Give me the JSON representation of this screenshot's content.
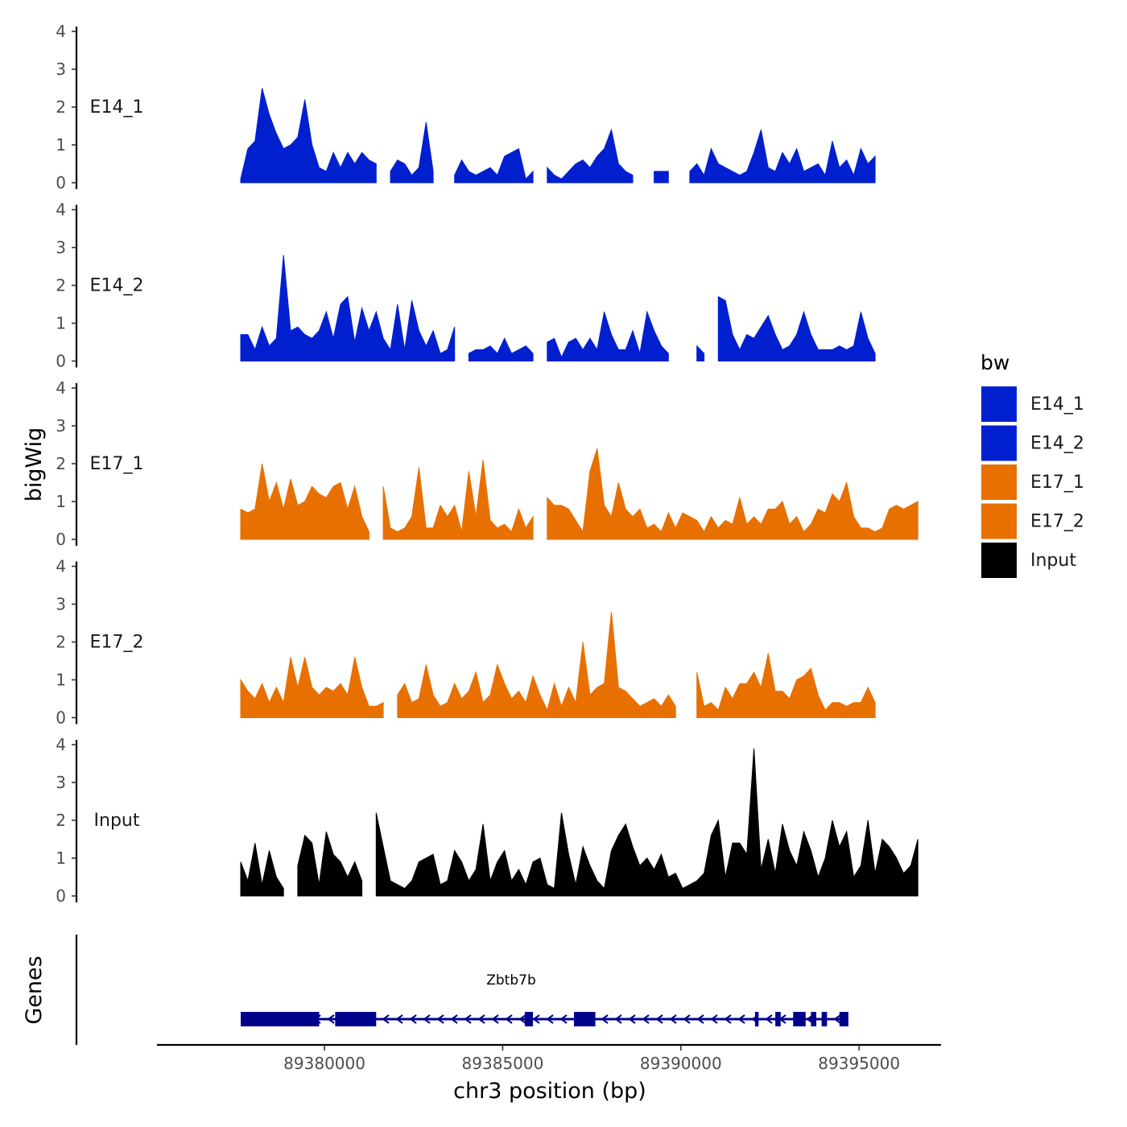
{
  "chart_data": {
    "type": "area",
    "title": "",
    "ylabel": "bigWig",
    "xlabel": "chr3 position (bp)",
    "genes_label": "Genes",
    "xlim": [
      89375300,
      89397300
    ],
    "ylim": [
      0,
      4
    ],
    "yticks": [
      "0",
      "1",
      "2",
      "3",
      "4"
    ],
    "xticks": [
      {
        "value": 89380000,
        "label": "89380000"
      },
      {
        "value": 89385000,
        "label": "89385000"
      },
      {
        "value": 89390000,
        "label": "89390000"
      },
      {
        "value": 89395000,
        "label": "89395000"
      }
    ],
    "legend": {
      "title": "bw",
      "position": "right",
      "entries": [
        {
          "label": "E14_1",
          "color": "#0020D0"
        },
        {
          "label": "E14_2",
          "color": "#0020D0"
        },
        {
          "label": "E17_1",
          "color": "#E87000"
        },
        {
          "label": "E17_2",
          "color": "#E87000"
        },
        {
          "label": "Input",
          "color": "#000000"
        }
      ]
    },
    "x": [
      89377650,
      89377850,
      89378050,
      89378250,
      89378450,
      89378650,
      89378850,
      89379050,
      89379250,
      89379450,
      89379650,
      89379850,
      89380050,
      89380250,
      89380450,
      89380650,
      89380850,
      89381050,
      89381250,
      89381450,
      89381650,
      89381850,
      89382050,
      89382250,
      89382450,
      89382650,
      89382850,
      89383050,
      89383250,
      89383450,
      89383650,
      89383850,
      89384050,
      89384250,
      89384450,
      89384650,
      89384850,
      89385050,
      89385250,
      89385450,
      89385650,
      89385850,
      89386050,
      89386250,
      89386450,
      89386650,
      89386850,
      89387050,
      89387250,
      89387450,
      89387650,
      89387850,
      89388050,
      89388250,
      89388450,
      89388650,
      89388850,
      89389050,
      89389250,
      89389450,
      89389650,
      89389850,
      89390050,
      89390250,
      89390450,
      89390650,
      89390850,
      89391050,
      89391250,
      89391450,
      89391650,
      89391850,
      89392050,
      89392250,
      89392450,
      89392650,
      89392850,
      89393050,
      89393250,
      89393450,
      89393650,
      89393850,
      89394050,
      89394250,
      89394450,
      89394650,
      89394850,
      89395050,
      89395250,
      89395450,
      89395650,
      89395850,
      89396050,
      89396250,
      89396450,
      89396650
    ],
    "series": [
      {
        "name": "E14_1",
        "color": "#0020D0",
        "values": [
          0.1,
          0.9,
          1.1,
          2.5,
          1.8,
          1.3,
          0.9,
          1.0,
          1.2,
          2.2,
          1.0,
          0.4,
          0.3,
          0.8,
          0.4,
          0.8,
          0.5,
          0.8,
          0.6,
          0.5,
          null,
          0.3,
          0.6,
          0.5,
          0.2,
          0.4,
          1.6,
          0.3,
          null,
          null,
          0.2,
          0.6,
          0.3,
          0.2,
          0.3,
          0.4,
          0.2,
          0.7,
          0.8,
          0.9,
          0.1,
          0.3,
          null,
          0.4,
          0.2,
          0.1,
          0.3,
          0.5,
          0.6,
          0.4,
          0.7,
          0.9,
          1.4,
          0.5,
          0.3,
          0.2,
          null,
          null,
          0.3,
          0.3,
          0.3,
          null,
          null,
          0.3,
          0.5,
          0.2,
          0.9,
          0.5,
          0.4,
          0.3,
          0.2,
          0.3,
          0.8,
          1.4,
          0.4,
          0.3,
          0.8,
          0.5,
          0.9,
          0.3,
          0.4,
          0.5,
          0.2,
          1.1,
          0.4,
          0.6,
          0.2,
          0.9,
          0.5,
          0.7,
          null,
          null,
          null,
          null,
          null,
          null
        ]
      },
      {
        "name": "E14_2",
        "color": "#0020D0",
        "values": [
          0.7,
          0.7,
          0.3,
          0.9,
          0.4,
          0.6,
          2.8,
          0.8,
          0.9,
          0.7,
          0.6,
          0.8,
          1.3,
          0.6,
          1.5,
          1.7,
          0.5,
          1.4,
          0.8,
          1.3,
          0.6,
          0.3,
          1.5,
          0.3,
          1.6,
          0.8,
          0.4,
          0.8,
          0.2,
          0.3,
          0.9,
          null,
          0.2,
          0.3,
          0.3,
          0.4,
          0.2,
          0.6,
          0.2,
          0.3,
          0.4,
          0.2,
          null,
          0.5,
          0.6,
          0.1,
          0.5,
          0.6,
          0.3,
          0.6,
          0.3,
          1.3,
          0.7,
          0.3,
          0.3,
          0.8,
          0.2,
          1.3,
          0.8,
          0.4,
          0.2,
          null,
          null,
          null,
          0.4,
          0.2,
          null,
          1.7,
          1.6,
          0.7,
          0.3,
          0.7,
          0.6,
          0.9,
          1.2,
          0.7,
          0.3,
          0.4,
          0.7,
          1.3,
          0.7,
          0.3,
          0.3,
          0.3,
          0.4,
          0.3,
          0.4,
          1.3,
          0.6,
          0.2,
          null,
          null,
          null,
          null,
          null,
          null
        ]
      },
      {
        "name": "E17_1",
        "color": "#E87000",
        "values": [
          0.8,
          0.7,
          0.8,
          2.0,
          1.0,
          1.5,
          0.8,
          1.6,
          0.9,
          1.0,
          1.4,
          1.2,
          1.1,
          1.4,
          1.5,
          0.8,
          1.4,
          0.6,
          0.2,
          null,
          1.4,
          0.3,
          0.2,
          0.3,
          0.6,
          1.9,
          0.3,
          0.3,
          0.9,
          0.6,
          0.9,
          0.2,
          1.8,
          0.6,
          2.1,
          0.5,
          0.3,
          0.4,
          0.2,
          0.8,
          0.3,
          0.6,
          null,
          1.1,
          0.9,
          0.9,
          0.8,
          0.5,
          0.2,
          1.8,
          2.4,
          0.9,
          0.6,
          1.5,
          0.8,
          0.6,
          0.8,
          0.3,
          0.4,
          0.2,
          0.7,
          0.3,
          0.7,
          0.6,
          0.5,
          0.2,
          0.6,
          0.3,
          0.5,
          0.4,
          1.1,
          0.4,
          0.6,
          0.4,
          0.8,
          0.8,
          1.0,
          0.4,
          0.6,
          0.2,
          0.4,
          0.8,
          0.7,
          1.2,
          1.0,
          1.5,
          0.6,
          0.3,
          0.3,
          0.2,
          0.3,
          0.8,
          0.9,
          0.8,
          0.9,
          1.0
        ]
      },
      {
        "name": "E17_2",
        "color": "#E87000",
        "values": [
          1.0,
          0.7,
          0.5,
          0.9,
          0.4,
          0.8,
          0.4,
          1.6,
          0.8,
          1.6,
          0.8,
          0.6,
          0.8,
          0.7,
          0.9,
          0.6,
          1.6,
          0.8,
          0.3,
          0.3,
          0.4,
          null,
          0.6,
          0.9,
          0.4,
          0.5,
          1.4,
          0.6,
          0.3,
          0.4,
          0.9,
          0.5,
          0.7,
          1.2,
          0.4,
          0.6,
          1.4,
          0.9,
          0.5,
          0.7,
          0.4,
          1.1,
          0.6,
          0.2,
          0.9,
          0.3,
          0.8,
          0.4,
          2.0,
          0.6,
          0.8,
          0.9,
          2.8,
          0.8,
          0.7,
          0.5,
          0.3,
          0.4,
          0.5,
          0.3,
          0.6,
          0.3,
          null,
          null,
          1.2,
          0.3,
          0.4,
          0.2,
          0.8,
          0.5,
          0.9,
          0.9,
          1.2,
          0.8,
          1.7,
          0.7,
          0.7,
          0.5,
          1.0,
          1.1,
          1.3,
          0.6,
          0.2,
          0.4,
          0.4,
          0.3,
          0.4,
          0.4,
          0.8,
          0.4,
          null,
          null,
          null,
          null,
          null,
          null
        ]
      },
      {
        "name": "Input",
        "color": "#000000",
        "values": [
          0.9,
          0.4,
          1.4,
          0.3,
          1.2,
          0.5,
          0.2,
          null,
          0.8,
          1.6,
          1.4,
          0.3,
          1.7,
          1.1,
          0.9,
          0.5,
          0.9,
          0.4,
          null,
          2.2,
          1.3,
          0.4,
          0.3,
          0.2,
          0.4,
          0.9,
          1.0,
          1.1,
          0.3,
          0.4,
          1.2,
          0.9,
          0.4,
          0.7,
          1.9,
          0.4,
          0.9,
          1.2,
          0.4,
          0.7,
          0.3,
          0.9,
          1.0,
          0.3,
          0.2,
          2.2,
          1.1,
          0.3,
          1.3,
          0.8,
          0.4,
          0.2,
          1.2,
          1.6,
          1.9,
          1.3,
          0.8,
          1.0,
          0.7,
          1.1,
          0.5,
          0.6,
          0.2,
          0.3,
          0.4,
          0.6,
          1.6,
          2.0,
          0.5,
          1.4,
          1.4,
          1.1,
          3.9,
          0.7,
          1.5,
          0.6,
          1.9,
          1.2,
          0.8,
          1.7,
          1.2,
          0.5,
          1.0,
          2.0,
          1.3,
          1.7,
          0.5,
          0.8,
          2.0,
          0.6,
          1.5,
          1.3,
          1.0,
          0.6,
          0.8,
          1.5
        ]
      }
    ],
    "gene": {
      "name": "Zbtb7b",
      "strand": "-",
      "start": 89377650,
      "end": 89394700,
      "exons": [
        [
          89377650,
          89379850
        ],
        [
          89380300,
          89381450
        ],
        [
          89385620,
          89385850
        ],
        [
          89387000,
          89387600
        ],
        [
          89392080,
          89392180
        ],
        [
          89392650,
          89392800
        ],
        [
          89393150,
          89393500
        ],
        [
          89393650,
          89393800
        ],
        [
          89393950,
          89394100
        ],
        [
          89394450,
          89394700
        ]
      ]
    }
  }
}
